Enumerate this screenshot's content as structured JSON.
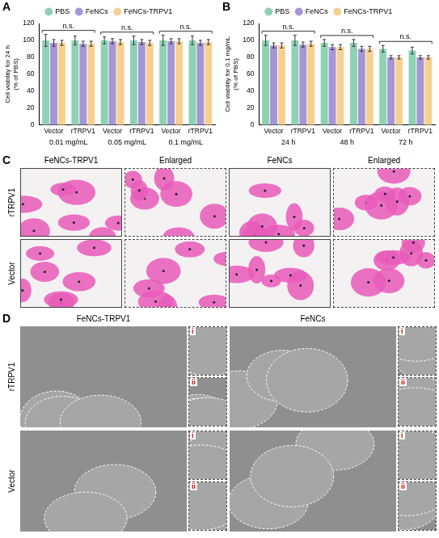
{
  "chart_data": [
    {
      "panel": "A",
      "type": "bar",
      "y_label": [
        "Cell viability for 24 h",
        "(% of PBS)"
      ],
      "categories": [
        "Vector",
        "rTRPV1",
        "Vector",
        "rTRPV1",
        "Vector",
        "rTRPV1"
      ],
      "groups": [
        {
          "label": "0.01 mg/mL",
          "annotation": "n.s."
        },
        {
          "label": "0.05 mg/mL",
          "annotation": "n.s."
        },
        {
          "label": "0.1 mg/mL",
          "annotation": "n.s."
        }
      ],
      "series": [
        {
          "name": "PBS",
          "color": "#8fd1b4",
          "values": [
            100,
            100,
            100,
            100,
            100,
            100
          ],
          "errors": [
            7,
            5,
            4,
            5,
            6,
            5
          ]
        },
        {
          "name": "FeNCs",
          "color": "#a596d6",
          "values": [
            97,
            96,
            99,
            98,
            99,
            97
          ],
          "errors": [
            4,
            3,
            3,
            3,
            3,
            3
          ]
        },
        {
          "name": "FeNCs-TRPV1",
          "color": "#f7cf8f",
          "values": [
            97,
            96,
            98,
            97,
            99,
            98
          ],
          "errors": [
            3,
            3,
            3,
            3,
            3,
            3
          ]
        }
      ],
      "ylim": [
        0,
        120
      ],
      "yticks": [
        0,
        20,
        40,
        60,
        80,
        100,
        120
      ],
      "grid": false,
      "legend": "top"
    },
    {
      "panel": "B",
      "type": "bar",
      "y_label": [
        "Cell viability for 0.1 mg/mL",
        "(% of PBS)"
      ],
      "categories": [
        "Vector",
        "rTRPV1",
        "Vector",
        "rTRPV1",
        "Vector",
        "rTRPV1"
      ],
      "groups": [
        {
          "label": "24 h",
          "annotation": "n.s."
        },
        {
          "label": "48 h",
          "annotation": "n.s."
        },
        {
          "label": "72 h",
          "annotation": "n.s."
        }
      ],
      "series": [
        {
          "name": "PBS",
          "color": "#8fd1b4",
          "values": [
            100,
            100,
            97,
            97,
            90,
            88
          ],
          "errors": [
            6,
            6,
            4,
            4,
            4,
            4
          ]
        },
        {
          "name": "FeNCs",
          "color": "#a596d6",
          "values": [
            94,
            95,
            92,
            90,
            80,
            80
          ],
          "errors": [
            3,
            3,
            3,
            3,
            2,
            2
          ]
        },
        {
          "name": "FeNCs-TRPV1",
          "color": "#f7cf8f",
          "values": [
            94,
            96,
            92,
            90,
            80,
            80
          ],
          "errors": [
            3,
            3,
            3,
            3,
            2,
            2
          ]
        }
      ],
      "ylim": [
        0,
        120
      ],
      "yticks": [
        0,
        20,
        40,
        60,
        80,
        100,
        120
      ],
      "grid": false,
      "legend": "top"
    }
  ],
  "images": [
    {
      "panel": "C",
      "type": "image_grid",
      "columns": [
        "FeNCs-TRPV1",
        "Enlarged",
        "FeNCs",
        "Enlarged"
      ],
      "rows": [
        "rTRPV1",
        "Vector"
      ]
    },
    {
      "panel": "D",
      "type": "image_grid",
      "columns": [
        "FeNCs-TRPV1",
        "FeNCs"
      ],
      "rows": [
        "rTRPV1",
        "Vector"
      ],
      "insets": [
        "i",
        "ii"
      ]
    }
  ]
}
